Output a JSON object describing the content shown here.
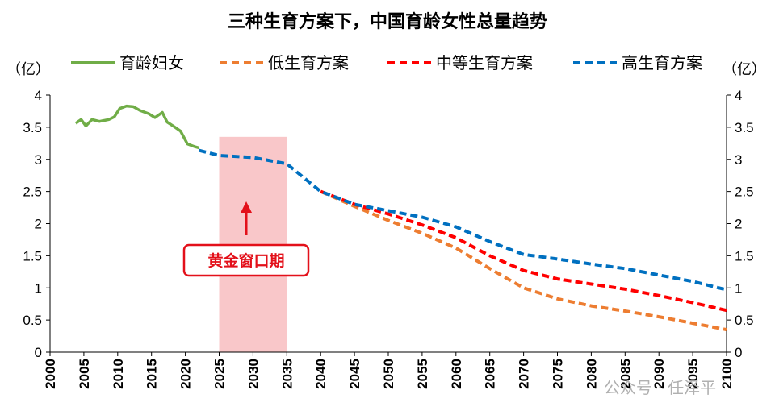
{
  "chart_data": {
    "type": "line",
    "title": "三种生育方案下，中国育龄女性总量趋势",
    "left_unit": "（亿）",
    "right_unit": "（亿）",
    "legend_placement": "top",
    "grid": false,
    "ylim": [
      0,
      4
    ],
    "xlim": [
      2000,
      2100
    ],
    "y_ticks": [
      "0",
      "0.5",
      "1",
      "1.5",
      "2",
      "2.5",
      "3",
      "3.5",
      "4"
    ],
    "x_ticks": [
      "2000",
      "2005",
      "2010",
      "2015",
      "2020",
      "2025",
      "2030",
      "2035",
      "2040",
      "2045",
      "2050",
      "2055",
      "2060",
      "2065",
      "2070",
      "2075",
      "2080",
      "2085",
      "2090",
      "2095",
      "2100"
    ],
    "series": [
      {
        "name": "育龄妇女",
        "color": "#70ad47",
        "dash": "solid",
        "points": [
          [
            2003.8,
            3.56
          ],
          [
            2004.6,
            3.62
          ],
          [
            2005.3,
            3.52
          ],
          [
            2006.2,
            3.62
          ],
          [
            2007.3,
            3.59
          ],
          [
            2008.7,
            3.62
          ],
          [
            2009.5,
            3.66
          ],
          [
            2010.3,
            3.79
          ],
          [
            2011.3,
            3.83
          ],
          [
            2012.3,
            3.82
          ],
          [
            2013.3,
            3.76
          ],
          [
            2014.6,
            3.71
          ],
          [
            2015.5,
            3.65
          ],
          [
            2016.6,
            3.73
          ],
          [
            2017.3,
            3.58
          ],
          [
            2018.2,
            3.52
          ],
          [
            2019.3,
            3.44
          ],
          [
            2020.3,
            3.24
          ],
          [
            2021.3,
            3.2
          ],
          [
            2022.0,
            3.18
          ]
        ]
      },
      {
        "name": "低生育方案",
        "color": "#ed7d31",
        "dash": "dashed",
        "points": [
          [
            2040,
            2.5
          ],
          [
            2045,
            2.27
          ],
          [
            2050,
            2.05
          ],
          [
            2055,
            1.85
          ],
          [
            2060,
            1.62
          ],
          [
            2065,
            1.3
          ],
          [
            2070,
            1.0
          ],
          [
            2075,
            0.83
          ],
          [
            2080,
            0.72
          ],
          [
            2085,
            0.64
          ],
          [
            2090,
            0.55
          ],
          [
            2095,
            0.45
          ],
          [
            2100,
            0.35
          ]
        ]
      },
      {
        "name": "中等生育方案",
        "color": "#ff0000",
        "dash": "dashed",
        "points": [
          [
            2040,
            2.5
          ],
          [
            2045,
            2.3
          ],
          [
            2050,
            2.15
          ],
          [
            2055,
            1.98
          ],
          [
            2060,
            1.78
          ],
          [
            2065,
            1.5
          ],
          [
            2070,
            1.27
          ],
          [
            2075,
            1.14
          ],
          [
            2080,
            1.06
          ],
          [
            2085,
            0.98
          ],
          [
            2090,
            0.88
          ],
          [
            2095,
            0.77
          ],
          [
            2100,
            0.65
          ]
        ]
      },
      {
        "name": "高生育方案",
        "color": "#0070c0",
        "dash": "dashed",
        "points": [
          [
            2022,
            3.14
          ],
          [
            2025,
            3.06
          ],
          [
            2030,
            3.03
          ],
          [
            2035,
            2.93
          ],
          [
            2040,
            2.5
          ],
          [
            2045,
            2.3
          ],
          [
            2050,
            2.2
          ],
          [
            2055,
            2.1
          ],
          [
            2060,
            1.95
          ],
          [
            2065,
            1.72
          ],
          [
            2070,
            1.52
          ],
          [
            2075,
            1.45
          ],
          [
            2080,
            1.37
          ],
          [
            2085,
            1.3
          ],
          [
            2090,
            1.2
          ],
          [
            2095,
            1.1
          ],
          [
            2100,
            0.97
          ]
        ]
      }
    ],
    "highlight": {
      "x_range": [
        2025,
        2035
      ],
      "y_range": [
        0,
        3.35
      ],
      "color": "#f9c7c9",
      "label": "黄金窗口期",
      "label_color": "#e3101a"
    }
  },
  "watermark": "公众号 · 任泽平"
}
